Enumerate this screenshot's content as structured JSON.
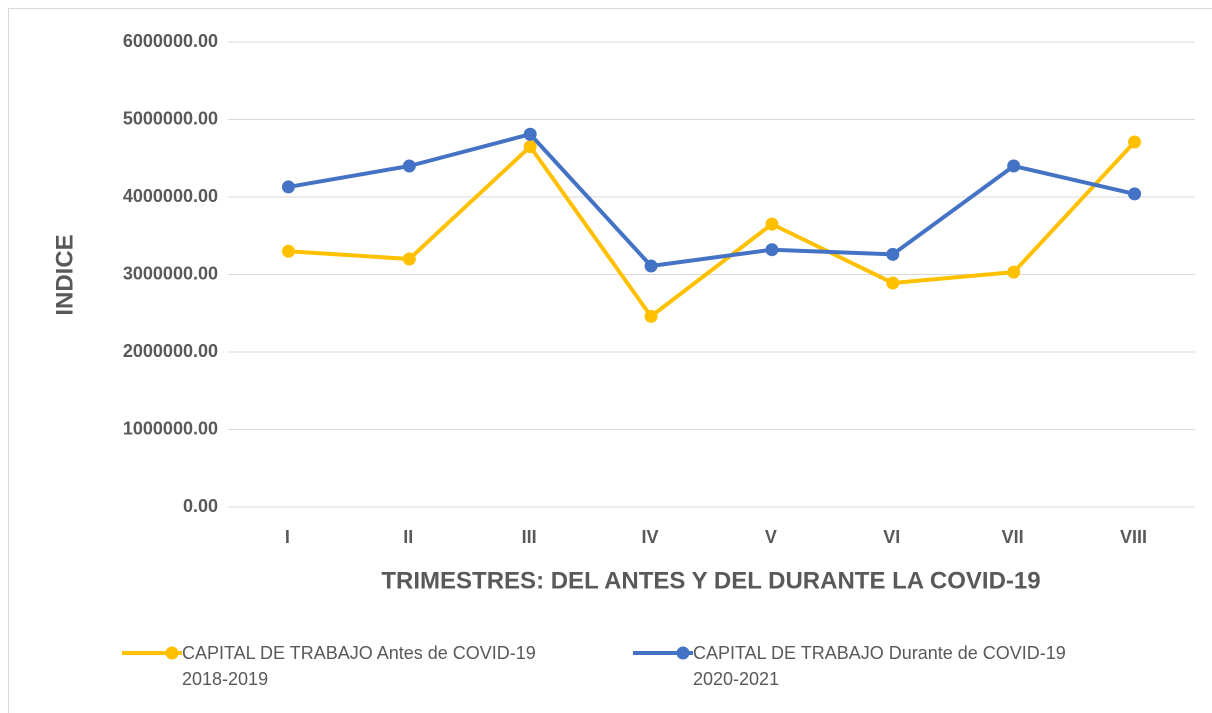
{
  "chart_data": {
    "type": "line",
    "x_label": "TRIMESTRES: DEL ANTES Y DEL DURANTE LA COVID-19",
    "y_label": "INDICE",
    "categories": [
      "I",
      "II",
      "III",
      "IV",
      "V",
      "VI",
      "VII",
      "VIII"
    ],
    "series": [
      {
        "name": "CAPITAL DE TRABAJO Antes de COVID-19 2018-2019",
        "color": "#FFC000",
        "values": [
          3300000,
          3200000,
          4650000,
          2460000,
          3650000,
          2890000,
          3030000,
          4710000
        ]
      },
      {
        "name": "CAPITAL DE TRABAJO Durante de COVID-19 2020-2021",
        "color": "#4472C4",
        "values": [
          4130000,
          4400000,
          4810000,
          3110000,
          3320000,
          3260000,
          4400000,
          4040000
        ]
      }
    ],
    "ylim": [
      0,
      6000000
    ],
    "yticks": [
      {
        "value": 0,
        "label": "0.00"
      },
      {
        "value": 1000000,
        "label": "1000000.00"
      },
      {
        "value": 2000000,
        "label": "2000000.00"
      },
      {
        "value": 3000000,
        "label": "3000000.00"
      },
      {
        "value": 4000000,
        "label": "4000000.00"
      },
      {
        "value": 5000000,
        "label": "5000000.00"
      },
      {
        "value": 6000000,
        "label": "6000000.00"
      }
    ],
    "grid": true,
    "legend": "bottom"
  }
}
